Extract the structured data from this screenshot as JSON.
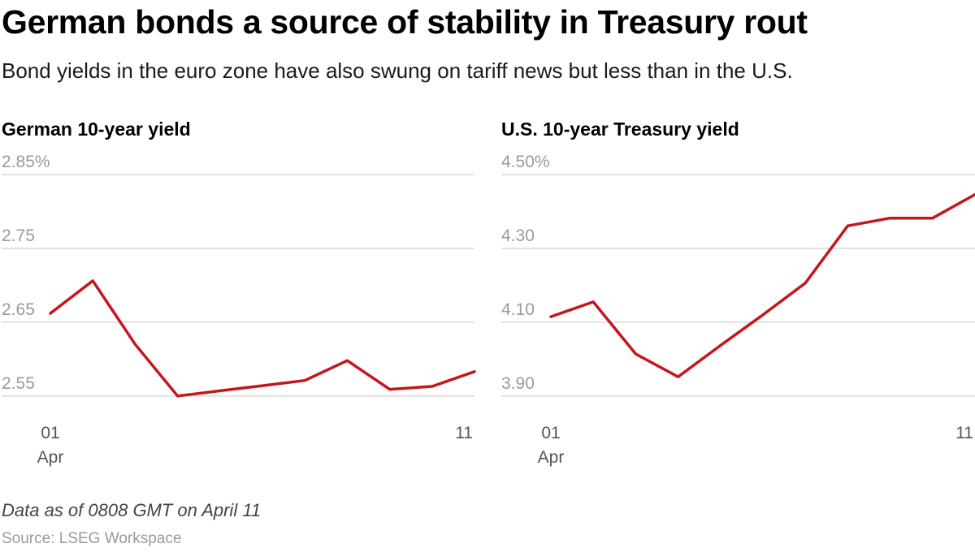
{
  "title": "German bonds a source of stability in Treasury rout",
  "subtitle": "Bond yields in the euro zone have also swung on tariff news but less than in the U.S.",
  "note": "Data as of 0808 GMT on April 11",
  "source": "Source: LSEG Workspace",
  "colors": {
    "line": "#c4161c",
    "grid": "#d9d9d9",
    "tick": "#9a9a9a"
  },
  "chart_data": [
    {
      "type": "line",
      "title": "German 10-year yield",
      "x_ticks": [
        {
          "label": "01",
          "sublabel": "Apr",
          "x": 1
        },
        {
          "label": "11",
          "sublabel": "",
          "x": 11
        }
      ],
      "y_ticks": [
        "2.85%",
        "2.75",
        "2.65",
        "2.55"
      ],
      "y_tick_values": [
        2.85,
        2.75,
        2.65,
        2.55
      ],
      "ylim": [
        2.53,
        2.85
      ],
      "xlim": [
        1,
        11
      ],
      "grid": true,
      "series": [
        {
          "x": [
            1,
            2,
            3,
            4,
            5,
            6,
            7,
            8,
            9,
            10,
            11
          ],
          "values": [
            2.662,
            2.706,
            2.62,
            2.55,
            2.557,
            2.564,
            2.571,
            2.598,
            2.559,
            2.563,
            2.583
          ]
        }
      ]
    },
    {
      "type": "line",
      "title": "U.S. 10-year Treasury yield",
      "x_ticks": [
        {
          "label": "01",
          "sublabel": "Apr",
          "x": 1
        },
        {
          "label": "11",
          "sublabel": "",
          "x": 11
        }
      ],
      "y_ticks": [
        "4.50%",
        "4.30",
        "4.10",
        "3.90"
      ],
      "y_tick_values": [
        4.5,
        4.3,
        4.1,
        3.9
      ],
      "ylim": [
        3.86,
        4.5
      ],
      "xlim": [
        1,
        11
      ],
      "grid": true,
      "series": [
        {
          "x": [
            1,
            2,
            3,
            4,
            5,
            6,
            7,
            8,
            9,
            10,
            11
          ],
          "values": [
            4.115,
            4.155,
            4.014,
            3.952,
            4.037,
            4.12,
            4.206,
            4.361,
            4.382,
            4.382,
            4.446
          ]
        }
      ]
    }
  ]
}
